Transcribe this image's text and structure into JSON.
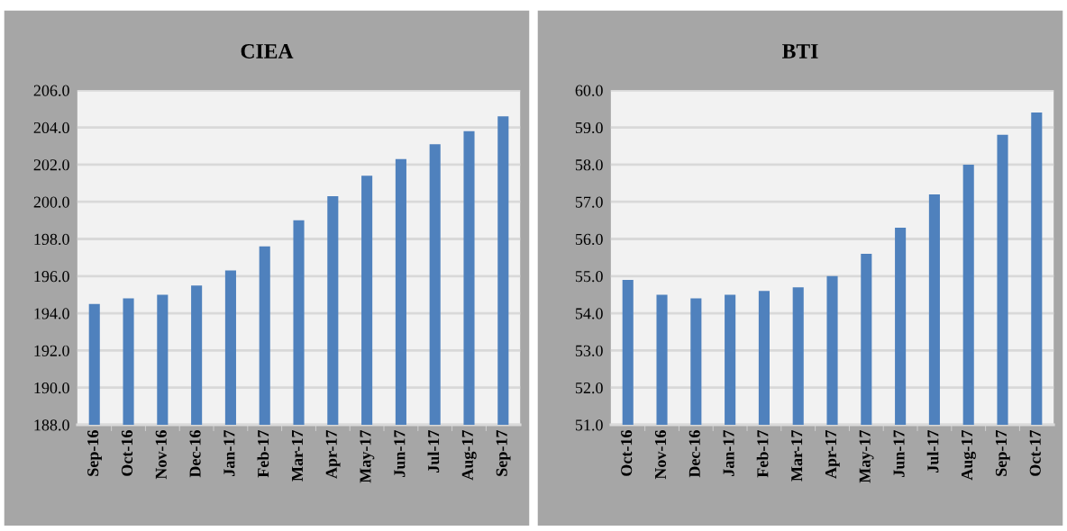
{
  "chart_data": [
    {
      "type": "bar",
      "title": "CIEA",
      "categories": [
        "Sep-16",
        "Oct-16",
        "Nov-16",
        "Dec-16",
        "Jan-17",
        "Feb-17",
        "Mar-17",
        "Apr-17",
        "May-17",
        "Jun-17",
        "Jul-17",
        "Aug-17",
        "Sep-17"
      ],
      "series": [
        {
          "color": "#4f81bd",
          "values": [
            194.5,
            194.8,
            195.0,
            195.5,
            196.3,
            197.6,
            199.0,
            200.3,
            201.4,
            202.3,
            203.1,
            203.8,
            204.6
          ]
        }
      ],
      "ylim": [
        188,
        206
      ],
      "yticks": [
        {
          "value": 188,
          "label": "188.0"
        },
        {
          "value": 190,
          "label": "190.0"
        },
        {
          "value": 192,
          "label": "192.0"
        },
        {
          "value": 194,
          "label": "194.0"
        },
        {
          "value": 196,
          "label": "196.0"
        },
        {
          "value": 198,
          "label": "198.0"
        },
        {
          "value": 200,
          "label": "200.0"
        },
        {
          "value": 202,
          "label": "202.0"
        },
        {
          "value": 204,
          "label": "204.0"
        },
        {
          "value": 206,
          "label": "206.0"
        }
      ],
      "grid": "y"
    },
    {
      "type": "bar",
      "title": "BTI",
      "categories": [
        "Oct-16",
        "Nov-16",
        "Dec-16",
        "Jan-17",
        "Feb-17",
        "Mar-17",
        "Apr-17",
        "May-17",
        "Jun-17",
        "Jul-17",
        "Aug-17",
        "Sep-17",
        "Oct-17"
      ],
      "series": [
        {
          "color": "#4f81bd",
          "values": [
            54.9,
            54.5,
            54.4,
            54.5,
            54.6,
            54.7,
            55.0,
            55.6,
            56.3,
            57.2,
            58.0,
            58.8,
            59.4
          ]
        }
      ],
      "ylim": [
        51,
        60
      ],
      "yticks": [
        {
          "value": 51,
          "label": "51.0"
        },
        {
          "value": 52,
          "label": "52.0"
        },
        {
          "value": 53,
          "label": "53.0"
        },
        {
          "value": 54,
          "label": "54.0"
        },
        {
          "value": 55,
          "label": "55.0"
        },
        {
          "value": 56,
          "label": "56.0"
        },
        {
          "value": 57,
          "label": "57.0"
        },
        {
          "value": 58,
          "label": "58.0"
        },
        {
          "value": 59,
          "label": "59.0"
        },
        {
          "value": 60,
          "label": "60.0"
        }
      ],
      "grid": "y"
    }
  ]
}
